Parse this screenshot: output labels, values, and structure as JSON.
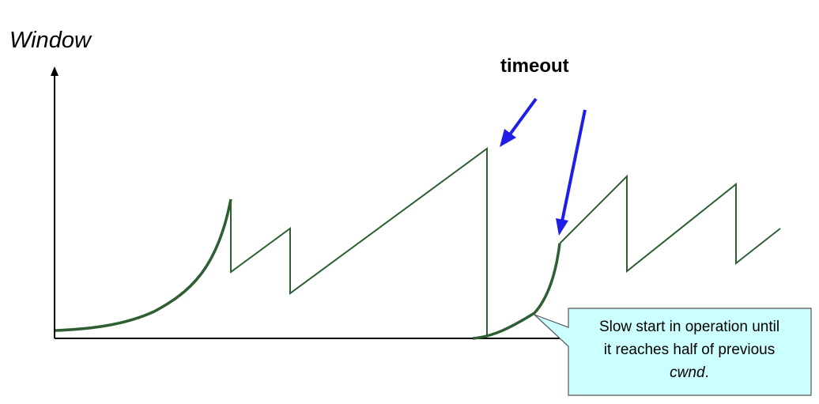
{
  "y_axis": {
    "label": "Window"
  },
  "timeout": {
    "label": "timeout"
  },
  "note": {
    "line1": "Slow start in operation until",
    "line2": "it reaches half of previous",
    "line3_italic": "cwnd",
    "line3_tail": "."
  },
  "colors": {
    "curve": "#2d5f32",
    "arrow": "#1f1fe8",
    "axis": "#000000",
    "note_fill": "#ccffff",
    "note_border": "#555555"
  }
}
